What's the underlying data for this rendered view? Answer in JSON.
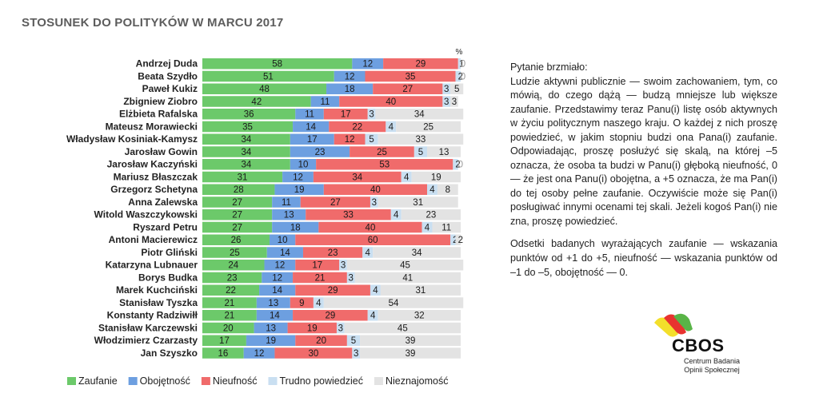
{
  "title": "STOSUNEK DO POLITYKÓW  W MARCU 2017",
  "percent_symbol": "%",
  "question": {
    "heading": "Pytanie brzmiało:",
    "body": "Ludzie aktywni publicznie — swoim zachowaniem, tym, co mówią, do czego dążą — budzą mniejsze lub większe zaufanie. Przedstawimy teraz Panu(i) listę osób aktywnych w życiu politycznym naszego kraju. O każdej z nich proszę powiedzieć, w jakim stopniu budzi ona Pana(i) zaufanie. Odpowiadając, proszę posłużyć się skalą, na której –5 oznacza, że osoba ta budzi w Panu(i) głęboką nieufność, 0 — że jest ona Panu(i) obojętna, a +5 oznacza, że ma Pan(i) do tej osoby pełne zaufanie. Oczywiście może się Pan(i) posługiwać innymi ocenami tej skali. Jeżeli kogoś Pan(i) nie zna, proszę powiedzieć.",
    "note": "Odsetki badanych wyrażających zaufanie — wskazania punktów od +1 do +5, nieufność — wskazania punktów od –1 do –5, obojętność — 0."
  },
  "logo": {
    "name": "CBOS",
    "subtitle_line1": "Centrum Badania",
    "subtitle_line2": "Opinii Społecznej"
  },
  "colors": {
    "Zaufanie": "#6cc96a",
    "Obojętność": "#6d9fe0",
    "Nieufność": "#f06b6b",
    "Trudno powiedzieć": "#c9dff1",
    "Nieznajomość": "#e3e3e3"
  },
  "chart_data": {
    "type": "bar",
    "orientation": "horizontal",
    "stacked": true,
    "unit": "%",
    "xlim": [
      0,
      100
    ],
    "legend_position": "bottom",
    "categories": [
      "Andrzej Duda",
      "Beata Szydło",
      "Paweł Kukiz",
      "Zbigniew Ziobro",
      "Elżbieta Rafalska",
      "Mateusz Morawiecki",
      "Władysław Kosiniak-Kamysz",
      "Jarosław Gowin",
      "Jarosław Kaczyński",
      "Mariusz Błaszczak",
      "Grzegorz Schetyna",
      "Anna Zalewska",
      "Witold Waszczykowski",
      "Ryszard Petru",
      "Antoni Macierewicz",
      "Piotr Gliński",
      "Katarzyna Lubnauer",
      "Borys Budka",
      "Marek Kuchciński",
      "Stanisław Tyszka",
      "Konstanty Radziwiłł",
      "Stanisław Karczewski",
      "Włodzimierz Czarzasty",
      "Jan Szyszko"
    ],
    "series": [
      {
        "name": "Zaufanie",
        "values": [
          58,
          51,
          48,
          42,
          36,
          35,
          34,
          34,
          34,
          31,
          28,
          27,
          27,
          27,
          26,
          25,
          24,
          23,
          22,
          21,
          21,
          20,
          17,
          16
        ]
      },
      {
        "name": "Obojętność",
        "values": [
          12,
          12,
          18,
          11,
          11,
          14,
          17,
          23,
          10,
          12,
          19,
          11,
          13,
          18,
          10,
          14,
          12,
          12,
          14,
          13,
          14,
          13,
          19,
          12
        ]
      },
      {
        "name": "Nieufność",
        "values": [
          29,
          35,
          27,
          40,
          17,
          22,
          12,
          25,
          53,
          34,
          40,
          27,
          33,
          40,
          60,
          23,
          17,
          21,
          29,
          9,
          29,
          19,
          20,
          30
        ]
      },
      {
        "name": "Trudno powiedzieć",
        "values": [
          1,
          2,
          3,
          3,
          3,
          4,
          5,
          5,
          2,
          4,
          4,
          3,
          4,
          4,
          2,
          4,
          3,
          3,
          4,
          4,
          4,
          3,
          5,
          3
        ]
      },
      {
        "name": "Nieznajomość",
        "values": [
          0,
          0,
          5,
          3,
          34,
          25,
          33,
          13,
          0,
          19,
          8,
          31,
          23,
          11,
          2,
          34,
          45,
          41,
          31,
          54,
          32,
          45,
          39,
          39
        ]
      }
    ]
  }
}
